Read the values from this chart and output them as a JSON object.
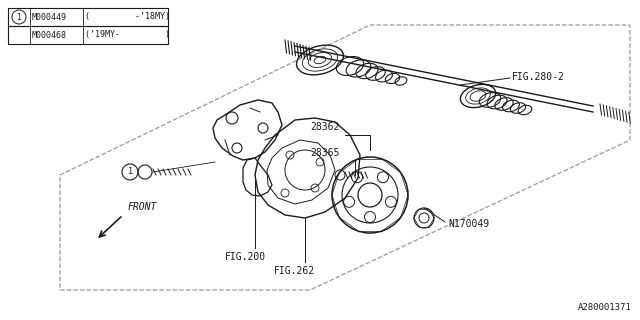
{
  "bg_color": "#ffffff",
  "diagram_id": "A280001371",
  "table_rows": [
    {
      "circle": "1",
      "part": "M000449",
      "desc": "(         -’18MY)"
    },
    {
      "circle": "",
      "part": "M000468",
      "desc": "(’19MY-         )"
    }
  ],
  "dark": "#1a1a1a",
  "gray": "#aaaaaa",
  "font_mono": "monospace"
}
